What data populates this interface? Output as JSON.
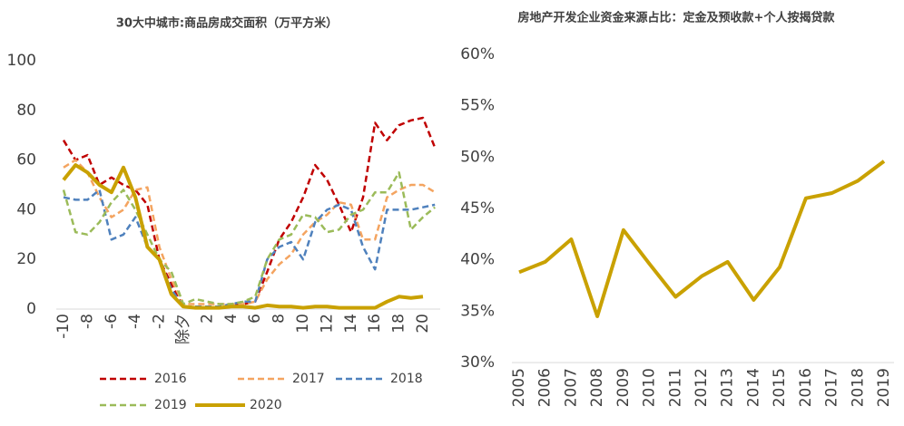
{
  "chart_data": [
    {
      "type": "line",
      "title": "30大中城市:商品房成交面积（万平方米）",
      "categories": [
        "-10",
        null,
        "-8",
        null,
        "-6",
        null,
        "-4",
        null,
        "-2",
        null,
        "除夕",
        null,
        "2",
        null,
        "4",
        null,
        "6",
        null,
        "8",
        null,
        "10",
        null,
        "12",
        null,
        "14",
        null,
        "16",
        null,
        "18",
        null,
        "20",
        null
      ],
      "ylim": [
        0,
        100
      ],
      "yticks": [
        0,
        20,
        40,
        60,
        80,
        100
      ],
      "legend": "bottom",
      "series": [
        {
          "name": "2016",
          "color": "#c00000",
          "dash": true,
          "values": [
            68,
            60,
            62,
            50,
            53,
            50,
            48,
            42,
            20,
            10,
            1,
            1,
            1,
            1,
            2,
            2,
            3,
            15,
            28,
            35,
            45,
            58,
            52,
            42,
            31,
            45,
            75,
            68,
            74,
            76,
            77,
            65
          ]
        },
        {
          "name": "2017",
          "color": "#f4a460",
          "dash": true,
          "values": [
            57,
            60,
            55,
            45,
            37,
            40,
            48,
            49,
            25,
            12,
            2,
            2,
            2,
            2,
            2,
            2,
            3,
            12,
            18,
            22,
            30,
            35,
            38,
            43,
            42,
            28,
            28,
            45,
            48,
            50,
            50,
            47
          ]
        },
        {
          "name": "2018",
          "color": "#4f81bd",
          "dash": true,
          "values": [
            45,
            44,
            44,
            48,
            28,
            30,
            37,
            25,
            20,
            8,
            1,
            1,
            1,
            1,
            2,
            3,
            3,
            20,
            25,
            27,
            20,
            35,
            40,
            42,
            40,
            25,
            16,
            40,
            40,
            40,
            41,
            42
          ]
        },
        {
          "name": "2019",
          "color": "#9bbb59",
          "dash": true,
          "values": [
            48,
            31,
            30,
            35,
            43,
            48,
            40,
            30,
            20,
            15,
            2,
            4,
            3,
            2,
            2,
            3,
            5,
            20,
            28,
            30,
            38,
            37,
            31,
            32,
            38,
            40,
            47,
            47,
            55,
            32,
            37,
            41
          ]
        },
        {
          "name": "2020",
          "color": "#c9a100",
          "dash": false,
          "values": [
            52,
            58,
            55,
            50,
            47,
            57,
            45,
            25,
            20,
            6,
            1,
            0.5,
            0.5,
            0.5,
            1,
            1,
            0.5,
            1.5,
            1,
            1,
            0.5,
            1,
            1,
            0.5,
            0.5,
            0.5,
            0.5,
            3,
            5,
            4.5,
            5,
            null
          ]
        }
      ]
    },
    {
      "type": "line",
      "title": "房地产开发企业资金来源占比：定金及预收款+个人按揭贷款",
      "categories": [
        "2005",
        "2006",
        "2007",
        "2008",
        "2009",
        "2010",
        "2011",
        "2012",
        "2013",
        "2014",
        "2015",
        "2016",
        "2017",
        "2018",
        "2019"
      ],
      "ylim": [
        30,
        60
      ],
      "yticks": [
        {
          "value": 30,
          "label": "30%"
        },
        {
          "value": 35,
          "label": "35%"
        },
        {
          "value": 40,
          "label": "40%"
        },
        {
          "value": 45,
          "label": "45%"
        },
        {
          "value": 50,
          "label": "50%"
        },
        {
          "value": 55,
          "label": "55%"
        },
        {
          "value": 60,
          "label": "60%"
        }
      ],
      "series": [
        {
          "color": "#c9a100",
          "values": [
            38.8,
            39.8,
            42,
            34.5,
            42.9,
            39.6,
            36.4,
            38.4,
            39.8,
            36.1,
            39.3,
            46,
            46.5,
            47.7,
            49.6
          ]
        }
      ]
    }
  ]
}
